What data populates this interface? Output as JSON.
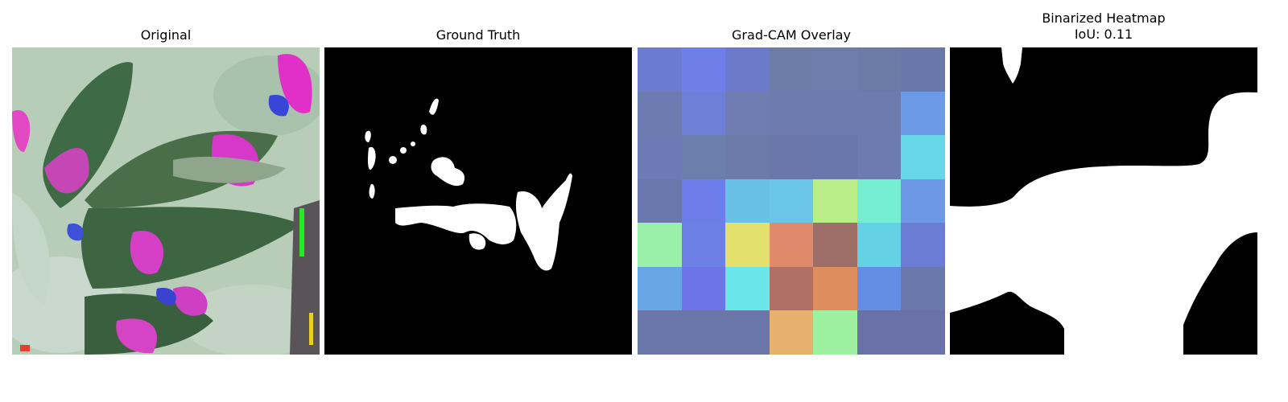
{
  "panels": [
    {
      "title": "Original"
    },
    {
      "title": "Ground Truth"
    },
    {
      "title": "Grad-CAM Overlay"
    },
    {
      "title": "Binarized Heatmap",
      "subtitle": "IoU: 0.11"
    }
  ],
  "gradcam": {
    "grid_size": 7,
    "cell_colors": [
      [
        "#6a7bd0",
        "#6e7fe9",
        "#6c7acb",
        "#6e7ca8",
        "#6e7eac",
        "#6b7ba8",
        "#6a77a9"
      ],
      [
        "#6c7bb0",
        "#6d7fd6",
        "#6e7cb2",
        "#6e7cad",
        "#6e7cad",
        "#6e7cad",
        "#6b9ae6"
      ],
      [
        "#6c7bb3",
        "#6c7eac",
        "#6c7aa9",
        "#6a77a8",
        "#6a77ac",
        "#6c7cb0",
        "#67d6e6"
      ],
      [
        "#6a78ad",
        "#6d7de9",
        "#69c0e6",
        "#6cc6e8",
        "#b8ed88",
        "#74eed0",
        "#6c98e6"
      ],
      [
        "#9af0a8",
        "#6d80e6",
        "#e4e06c",
        "#e08a6c",
        "#9e6e68",
        "#64d2e4",
        "#6a7cd4"
      ],
      [
        "#68a6e6",
        "#6c74e6",
        "#6ae6e8",
        "#b07066",
        "#de8e5c",
        "#648ee6",
        "#6a78ac"
      ],
      [
        "#6a76a8",
        "#6a76a8",
        "#6a76a8",
        "#e4b26e",
        "#9cf0a0",
        "#6a70a8",
        "#6a70a8"
      ]
    ]
  }
}
